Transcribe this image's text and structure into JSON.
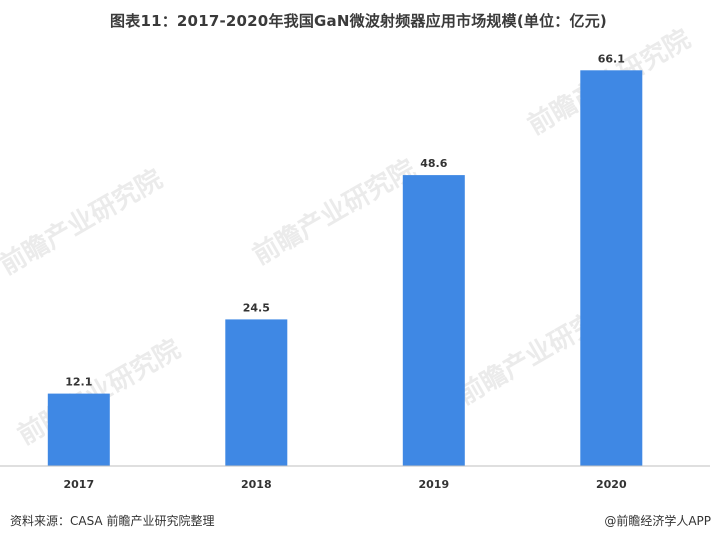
{
  "header": {
    "title": "图表11：2017-2020年我国GaN微波射频器应用市场规模(单位：亿元)"
  },
  "watermark": {
    "text": "前瞻产业研究院"
  },
  "footer": {
    "source": "资料来源：CASA 前瞻产业研究院整理",
    "credit": "@前瞻经济学人APP"
  },
  "colors": {
    "bar": "#3f88e4",
    "axis": "#bfbfbf",
    "text": "#333333"
  },
  "chart_data": {
    "type": "bar",
    "title": "图表11：2017-2020年我国GaN微波射频器应用市场规模(单位：亿元)",
    "categories": [
      "2017",
      "2018",
      "2019",
      "2020"
    ],
    "values": [
      12.1,
      24.5,
      48.6,
      66.1
    ],
    "value_labels": [
      "12.1",
      "24.5",
      "48.6",
      "66.1"
    ],
    "xlabel": "",
    "ylabel": "",
    "ylim": [
      0,
      70
    ],
    "grid": false,
    "legend": "none"
  }
}
